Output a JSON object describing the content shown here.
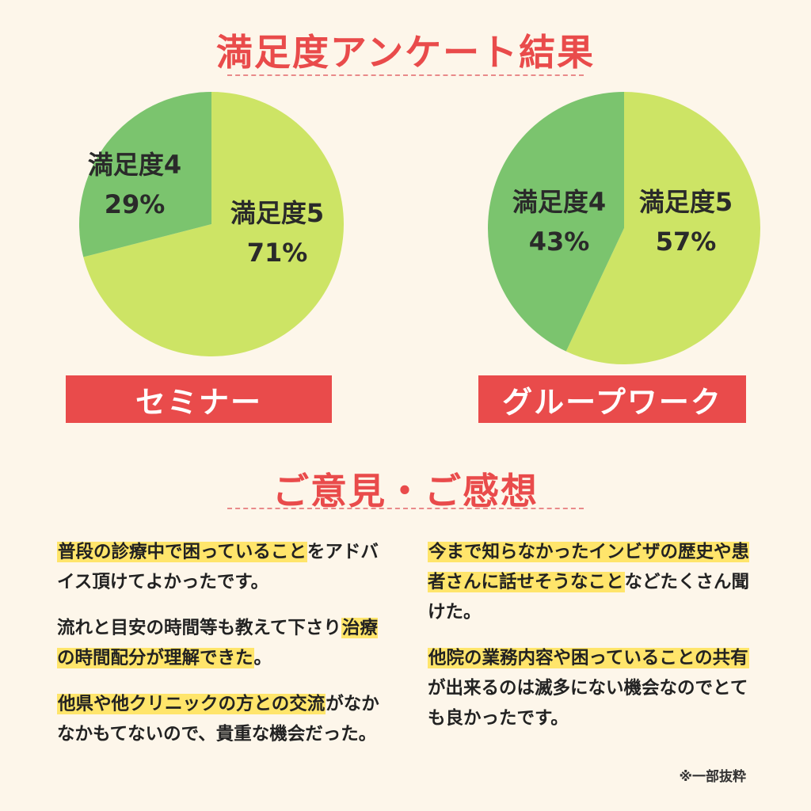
{
  "title": "満足度アンケート結果",
  "chart_data": [
    {
      "type": "pie",
      "label": "セミナー",
      "series": [
        {
          "name": "満足度5",
          "value": 71,
          "display": "71%",
          "color": "#cde465"
        },
        {
          "name": "満足度4",
          "value": 29,
          "display": "29%",
          "color": "#7bc46e"
        }
      ]
    },
    {
      "type": "pie",
      "label": "グループワーク",
      "series": [
        {
          "name": "満足度5",
          "value": 57,
          "display": "57%",
          "color": "#cde465"
        },
        {
          "name": "満足度4",
          "value": 43,
          "display": "43%",
          "color": "#7bc46e"
        }
      ]
    }
  ],
  "feedback": {
    "title": "ご意見・ご感想",
    "left": [
      [
        {
          "text": "普段の診療中で困っていること",
          "hl": true
        },
        {
          "text": "を",
          "hl": false
        },
        {
          "text": "アドバイス頂けてよかったです。",
          "hl": false
        }
      ],
      [
        {
          "text": "流れと目安の時間等も教えて下さり",
          "hl": false
        },
        {
          "text": "治療の時間配分が理解できた",
          "hl": true
        },
        {
          "text": "。",
          "hl": false
        }
      ],
      [
        {
          "text": "他県や他クリニックの方との交流",
          "hl": true
        },
        {
          "text": "がなかなかもてないので、貴重な機会だった。",
          "hl": false
        }
      ]
    ],
    "right": [
      [
        {
          "text": "今まで知らなかったインビザの歴史や患者さんに話せそうなこと",
          "hl": true
        },
        {
          "text": "などたくさん聞けた。",
          "hl": false
        }
      ],
      [
        {
          "text": "他院の業務内容や困っていることの共有",
          "hl": true
        },
        {
          "text": "が出来るのは滅多にない機会なのでとても良かったです。",
          "hl": false
        }
      ]
    ],
    "note": "※一部抜粋"
  }
}
